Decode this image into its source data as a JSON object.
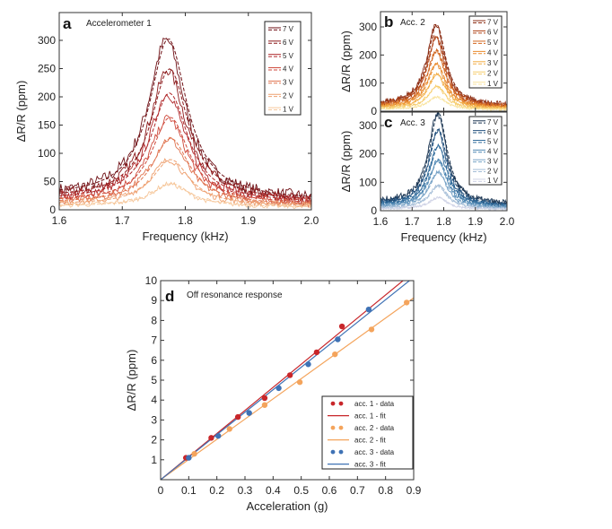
{
  "chart_data": [
    {
      "id": "a",
      "type": "line",
      "panel_label": "a",
      "title": "Accelerometer 1",
      "xlabel": "Frequency (kHz)",
      "ylabel": "ΔR/R (ppm)",
      "xlim": [
        1.6,
        2.0
      ],
      "ylim": [
        0,
        340
      ],
      "xticks": [
        "1.6",
        "1.7",
        "1.8",
        "1.9",
        "2.0"
      ],
      "yticks": [
        "0",
        "50",
        "100",
        "150",
        "200",
        "250",
        "300"
      ],
      "legend_placement": "top-right",
      "series": [
        {
          "name": "7 V",
          "center_khz": 1.77,
          "peak_ppm": 280,
          "color": "#6e0f14"
        },
        {
          "name": "6 V",
          "center_khz": 1.772,
          "peak_ppm": 230,
          "color": "#8c1a1c"
        },
        {
          "name": "5 V",
          "center_khz": 1.772,
          "peak_ppm": 190,
          "color": "#b0282a"
        },
        {
          "name": "4 V",
          "center_khz": 1.773,
          "peak_ppm": 150,
          "color": "#cf4a3c"
        },
        {
          "name": "3 V",
          "center_khz": 1.774,
          "peak_ppm": 115,
          "color": "#e0734f"
        },
        {
          "name": "2 V",
          "center_khz": 1.774,
          "peak_ppm": 80,
          "color": "#eea070"
        },
        {
          "name": "1 V",
          "center_khz": 1.775,
          "peak_ppm": 40,
          "color": "#f6c79b"
        }
      ]
    },
    {
      "id": "b",
      "type": "line",
      "panel_label": "b",
      "title": "Acc. 2",
      "xlabel": "Frequency (kHz)",
      "ylabel": "ΔR/R (ppm)",
      "xlim": [
        1.6,
        2.0
      ],
      "ylim": [
        0,
        360
      ],
      "xticks": [
        "1.6",
        "1.7",
        "1.8",
        "1.9",
        "2.0"
      ],
      "yticks": [
        "0",
        "100",
        "200",
        "300"
      ],
      "legend_placement": "top-right",
      "series": [
        {
          "name": "7 V",
          "center_khz": 1.775,
          "peak_ppm": 285,
          "color": "#8a2b12"
        },
        {
          "name": "6 V",
          "center_khz": 1.775,
          "peak_ppm": 245,
          "color": "#b04418"
        },
        {
          "name": "5 V",
          "center_khz": 1.776,
          "peak_ppm": 200,
          "color": "#d2661f"
        },
        {
          "name": "4 V",
          "center_khz": 1.776,
          "peak_ppm": 155,
          "color": "#e98a2c"
        },
        {
          "name": "3 V",
          "center_khz": 1.777,
          "peak_ppm": 120,
          "color": "#f2ad45"
        },
        {
          "name": "2 V",
          "center_khz": 1.777,
          "peak_ppm": 80,
          "color": "#f6cc6a"
        },
        {
          "name": "1 V",
          "center_khz": 1.778,
          "peak_ppm": 45,
          "color": "#f9e4a0"
        }
      ]
    },
    {
      "id": "c",
      "type": "line",
      "panel_label": "c",
      "title": "Acc. 3",
      "xlabel": "Frequency (kHz)",
      "ylabel": "ΔR/R (ppm)",
      "xlim": [
        1.6,
        2.0
      ],
      "ylim": [
        0,
        350
      ],
      "xticks": [
        "1.6",
        "1.7",
        "1.8",
        "1.9",
        "2.0"
      ],
      "yticks": [
        "0",
        "100",
        "200",
        "300"
      ],
      "legend_placement": "top-right",
      "series": [
        {
          "name": "7 V",
          "center_khz": 1.78,
          "peak_ppm": 320,
          "color": "#1b3552"
        },
        {
          "name": "6 V",
          "center_khz": 1.78,
          "peak_ppm": 265,
          "color": "#21507d"
        },
        {
          "name": "5 V",
          "center_khz": 1.781,
          "peak_ppm": 210,
          "color": "#2f6a9a"
        },
        {
          "name": "4 V",
          "center_khz": 1.781,
          "peak_ppm": 165,
          "color": "#4d86b2"
        },
        {
          "name": "3 V",
          "center_khz": 1.781,
          "peak_ppm": 125,
          "color": "#76a2c6"
        },
        {
          "name": "2 V",
          "center_khz": 1.782,
          "peak_ppm": 80,
          "color": "#a4bdd7"
        },
        {
          "name": "1 V",
          "center_khz": 1.782,
          "peak_ppm": 40,
          "color": "#cfd3e6"
        }
      ]
    },
    {
      "id": "d",
      "type": "scatter",
      "panel_label": "d",
      "title": "Off resonance response",
      "xlabel": "Acceleration (g)",
      "ylabel": "ΔR/R (ppm)",
      "xlim": [
        0,
        0.9
      ],
      "ylim": [
        0,
        10
      ],
      "xticks": [
        "0",
        "0.1",
        "0.2",
        "0.3",
        "0.4",
        "0.5",
        "0.6",
        "0.7",
        "0.8",
        "0.9"
      ],
      "yticks": [
        "1",
        "2",
        "3",
        "4",
        "5",
        "6",
        "7",
        "8",
        "9",
        "10"
      ],
      "legend_placement": "bottom-right",
      "series": [
        {
          "name": "acc. 1 - data",
          "fit_name": "acc. 1 - fit",
          "color": "#c8262a",
          "fit_slope_ppm_per_g": 11.6,
          "x": [
            0.09,
            0.18,
            0.275,
            0.37,
            0.46,
            0.555,
            0.645
          ],
          "y": [
            1.1,
            2.1,
            3.15,
            4.1,
            5.25,
            6.4,
            7.7
          ]
        },
        {
          "name": "acc. 2 - data",
          "fit_name": "acc. 2 - fit",
          "color": "#f4a45c",
          "fit_slope_ppm_per_g": 10.15,
          "x": [
            0.12,
            0.245,
            0.37,
            0.495,
            0.62,
            0.75,
            0.875
          ],
          "y": [
            1.3,
            2.55,
            3.75,
            4.9,
            6.3,
            7.55,
            8.9
          ]
        },
        {
          "name": "acc. 3 - data",
          "fit_name": "acc. 3 - fit",
          "color": "#3f72b5",
          "fit_slope_ppm_per_g": 11.3,
          "x": [
            0.1,
            0.205,
            0.315,
            0.42,
            0.525,
            0.63,
            0.74
          ],
          "y": [
            1.1,
            2.2,
            3.35,
            4.6,
            5.8,
            7.05,
            8.55
          ]
        }
      ]
    }
  ]
}
